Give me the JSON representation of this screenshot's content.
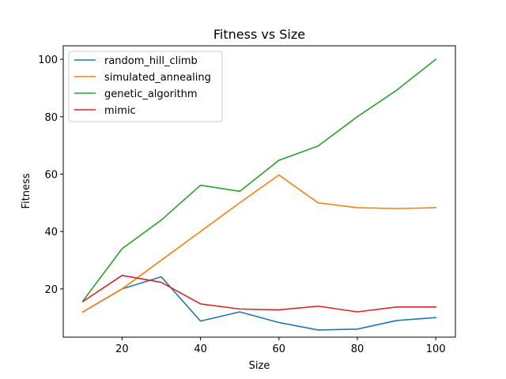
{
  "chart_data": {
    "type": "line",
    "title": "Fitness vs Size",
    "xlabel": "Size",
    "ylabel": "Fitness",
    "xlim": [
      5,
      105
    ],
    "ylim": [
      3.2,
      104.7
    ],
    "xticks": [
      20,
      40,
      60,
      80,
      100
    ],
    "yticks": [
      20,
      40,
      60,
      80,
      100
    ],
    "x": [
      10,
      20,
      30,
      40,
      50,
      60,
      70,
      80,
      90,
      100
    ],
    "legend_position": "upper left",
    "grid": false,
    "series": [
      {
        "name": "random_hill_climb",
        "color": "#1f77b4",
        "values": [
          12,
          20,
          24.2,
          8.8,
          12,
          8.3,
          5.7,
          6,
          9,
          10
        ]
      },
      {
        "name": "simulated_annealing",
        "color": "#ff7f0e",
        "values": [
          12,
          20,
          30,
          40,
          50,
          59.7,
          50,
          48.3,
          48,
          48.3
        ]
      },
      {
        "name": "genetic_algorithm",
        "color": "#2ca02c",
        "values": [
          15.8,
          34,
          44,
          56.1,
          54,
          64.8,
          69.8,
          80,
          89.2,
          100
        ]
      },
      {
        "name": "mimic",
        "color": "#d62728",
        "values": [
          15.6,
          24.7,
          22.3,
          14.8,
          13,
          12.7,
          14,
          12,
          13.7,
          13.7
        ]
      }
    ]
  }
}
